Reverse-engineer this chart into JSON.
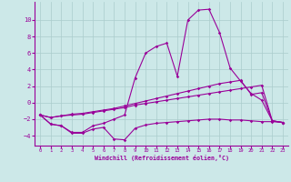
{
  "xlabel": "Windchill (Refroidissement éolien,°C)",
  "bg_color": "#cce8e8",
  "line_color": "#990099",
  "grid_color": "#aacccc",
  "xlim": [
    -0.5,
    23.5
  ],
  "ylim": [
    -5.2,
    12.2
  ],
  "yticks": [
    -4,
    -2,
    0,
    2,
    4,
    6,
    8,
    10
  ],
  "xticks": [
    0,
    1,
    2,
    3,
    4,
    5,
    6,
    7,
    8,
    9,
    10,
    11,
    12,
    13,
    14,
    15,
    16,
    17,
    18,
    19,
    20,
    21,
    22,
    23
  ],
  "s1_x": [
    0,
    1,
    2,
    3,
    4,
    5,
    6,
    7,
    8,
    9,
    10,
    11,
    12,
    13,
    14,
    15,
    16,
    17,
    18,
    19,
    20,
    21,
    22,
    23
  ],
  "s1_y": [
    -1.5,
    -2.6,
    -2.8,
    -3.7,
    -3.7,
    -3.2,
    -3.0,
    -4.4,
    -4.5,
    -3.1,
    -2.7,
    -2.5,
    -2.4,
    -2.3,
    -2.2,
    -2.1,
    -2.0,
    -2.0,
    -2.1,
    -2.1,
    -2.2,
    -2.3,
    -2.3,
    -2.4
  ],
  "s2_x": [
    0,
    1,
    2,
    3,
    4,
    5,
    6,
    7,
    8,
    9,
    10,
    11,
    12,
    13,
    14,
    15,
    16,
    17,
    18,
    19,
    20,
    21,
    22,
    23
  ],
  "s2_y": [
    -1.5,
    -1.8,
    -1.6,
    -1.5,
    -1.4,
    -1.2,
    -1.0,
    -0.8,
    -0.6,
    -0.3,
    -0.1,
    0.1,
    0.3,
    0.5,
    0.7,
    0.9,
    1.1,
    1.3,
    1.5,
    1.7,
    1.9,
    2.1,
    -2.2,
    -2.4
  ],
  "s3_x": [
    0,
    1,
    2,
    3,
    4,
    5,
    6,
    7,
    8,
    9,
    10,
    11,
    12,
    13,
    14,
    15,
    16,
    17,
    18,
    19,
    20,
    21,
    22,
    23
  ],
  "s3_y": [
    -1.5,
    -1.8,
    -1.6,
    -1.4,
    -1.3,
    -1.1,
    -0.9,
    -0.7,
    -0.4,
    -0.1,
    0.2,
    0.5,
    0.8,
    1.1,
    1.4,
    1.7,
    2.0,
    2.3,
    2.5,
    2.7,
    1.0,
    1.2,
    -2.2,
    -2.4
  ],
  "s4_x": [
    0,
    1,
    2,
    3,
    4,
    5,
    6,
    7,
    8,
    9,
    10,
    11,
    12,
    13,
    14,
    15,
    16,
    17,
    18,
    19,
    20,
    21,
    22,
    23
  ],
  "s4_y": [
    -1.5,
    -2.6,
    -2.8,
    -3.6,
    -3.6,
    -2.8,
    -2.5,
    -2.0,
    -1.5,
    3.0,
    6.0,
    6.8,
    7.2,
    3.2,
    10.0,
    11.2,
    11.3,
    8.5,
    4.2,
    2.6,
    1.1,
    0.3,
    -2.2,
    -2.4
  ]
}
